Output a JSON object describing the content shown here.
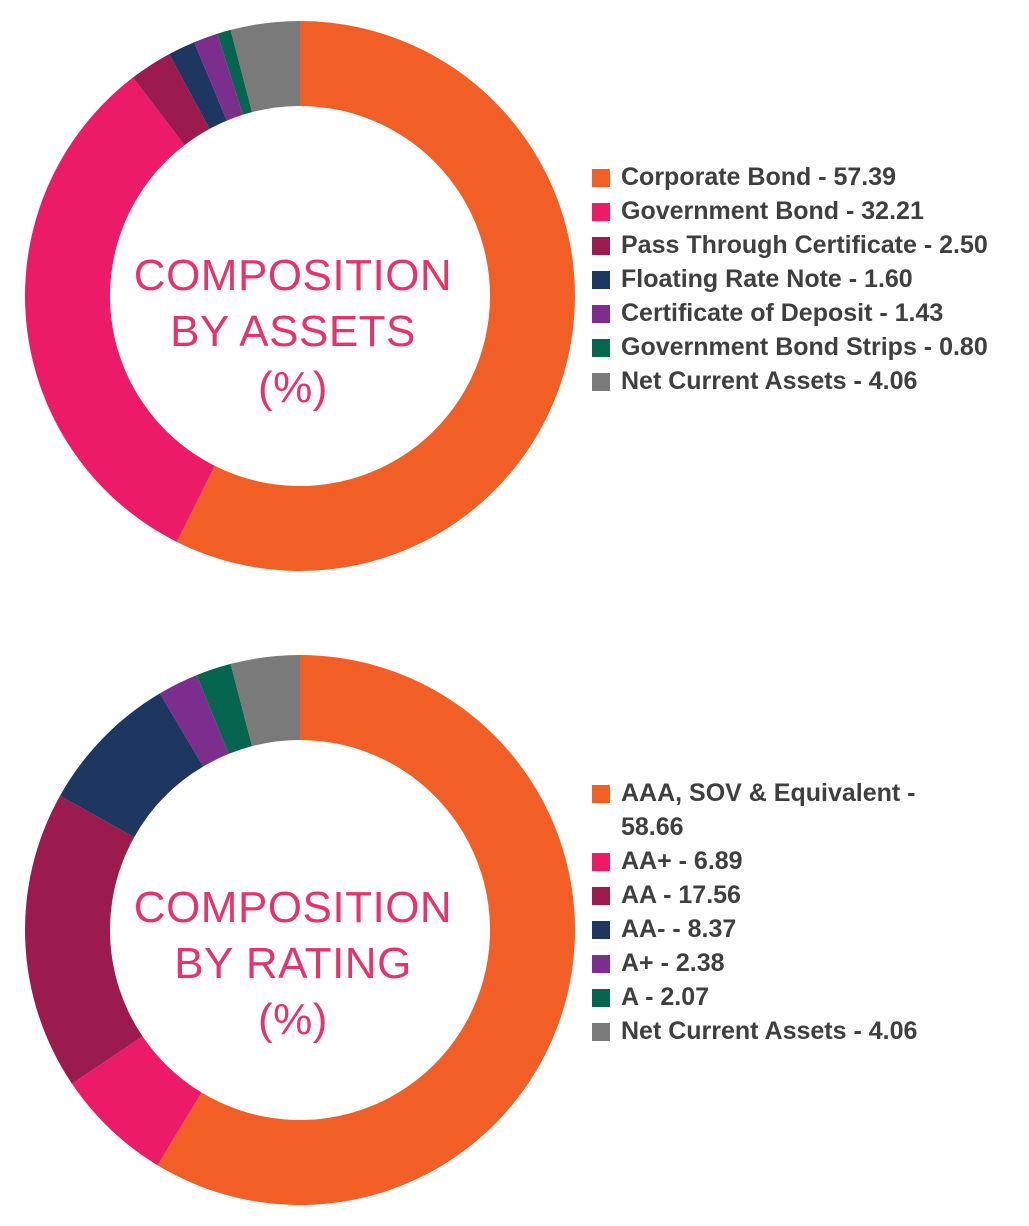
{
  "chart_data": [
    {
      "type": "pie",
      "title": "COMPOSITION BY ASSETS (%)",
      "title_lines": [
        "COMPOSITION",
        "BY ASSETS",
        "(%)"
      ],
      "labels": [
        "Corporate Bond",
        "Government Bond",
        "Pass Through Certificate",
        "Floating Rate Note",
        "Certificate of Deposit",
        "Government Bond Strips",
        "Net Current Assets"
      ],
      "values": [
        57.39,
        32.21,
        2.5,
        1.6,
        1.43,
        0.8,
        4.06
      ],
      "legend_text": [
        "Corporate Bond - 57.39",
        "Government Bond - 32.21",
        "Pass Through Certificate - 2.50",
        "Floating Rate Note - 1.60",
        "Certificate of Deposit - 1.43",
        "Government Bond Strips - 0.80",
        "Net Current Assets - 4.06"
      ],
      "colors": [
        "#f15f27",
        "#ec1b67",
        "#9b1b4f",
        "#1d3761",
        "#7b2e8d",
        "#06654f",
        "#7a7a7a"
      ],
      "legend_position": "right",
      "style": "donut"
    },
    {
      "type": "pie",
      "title": "COMPOSITION BY RATING (%)",
      "title_lines": [
        "COMPOSITION",
        "BY RATING",
        "(%)"
      ],
      "labels": [
        "AAA, SOV & Equivalent",
        "AA+",
        "AA",
        "AA-",
        "A+",
        "A",
        "Net Current Assets"
      ],
      "values": [
        58.66,
        6.89,
        17.56,
        8.37,
        2.38,
        2.07,
        4.06
      ],
      "legend_text": [
        "AAA, SOV & Equivalent - 58.66",
        "AA+ - 6.89",
        "AA - 17.56",
        "AA- - 8.37",
        "A+ - 2.38",
        "A - 2.07",
        "Net Current Assets - 4.06"
      ],
      "colors": [
        "#f15f27",
        "#ec1b67",
        "#9b1b4f",
        "#1d3761",
        "#7b2e8d",
        "#06654f",
        "#7a7a7a"
      ],
      "legend_position": "right",
      "style": "donut"
    }
  ]
}
